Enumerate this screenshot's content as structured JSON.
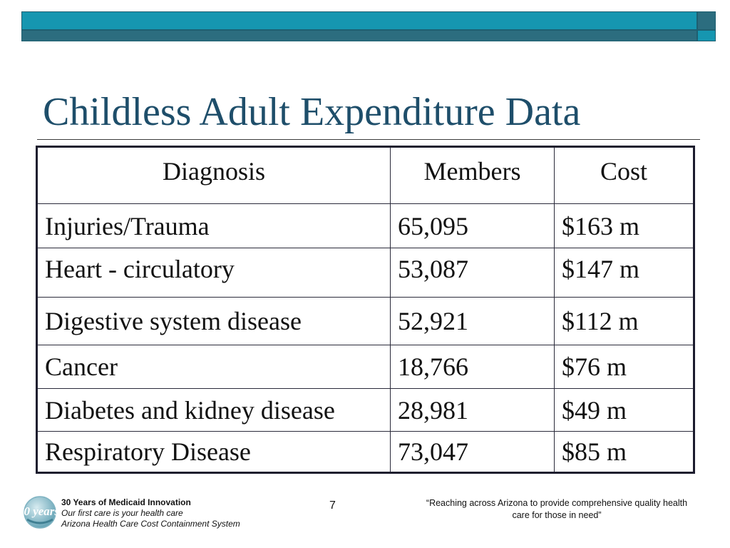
{
  "slide": {
    "title": "Childless Adult Expenditure Data",
    "page_number": "7"
  },
  "table": {
    "headers": [
      "Diagnosis",
      "Members",
      "Cost"
    ],
    "rows": [
      [
        "Injuries/Trauma",
        "65,095",
        "$163 m"
      ],
      [
        "Heart - circulatory",
        "53,087",
        "$147 m"
      ],
      [
        "Digestive system disease",
        "52,921",
        "$112 m"
      ],
      [
        "Cancer",
        "18,766",
        "$76 m"
      ],
      [
        "Diabetes and kidney disease",
        "28,981",
        "$49 m"
      ],
      [
        "Respiratory Disease",
        "73,047",
        "$85 m"
      ]
    ]
  },
  "footer": {
    "logo_text": "30 years",
    "line1": "30 Years of Medicaid Innovation",
    "line2": "Our first care is your health care",
    "line3": "Arizona Health Care Cost Containment System",
    "quote": "“Reaching across Arizona to provide comprehensive quality health care for those in need”"
  },
  "colors": {
    "accent_teal": "#1696b0",
    "accent_dark_teal": "#2c6d7f",
    "title_color": "#1e4e6a"
  }
}
